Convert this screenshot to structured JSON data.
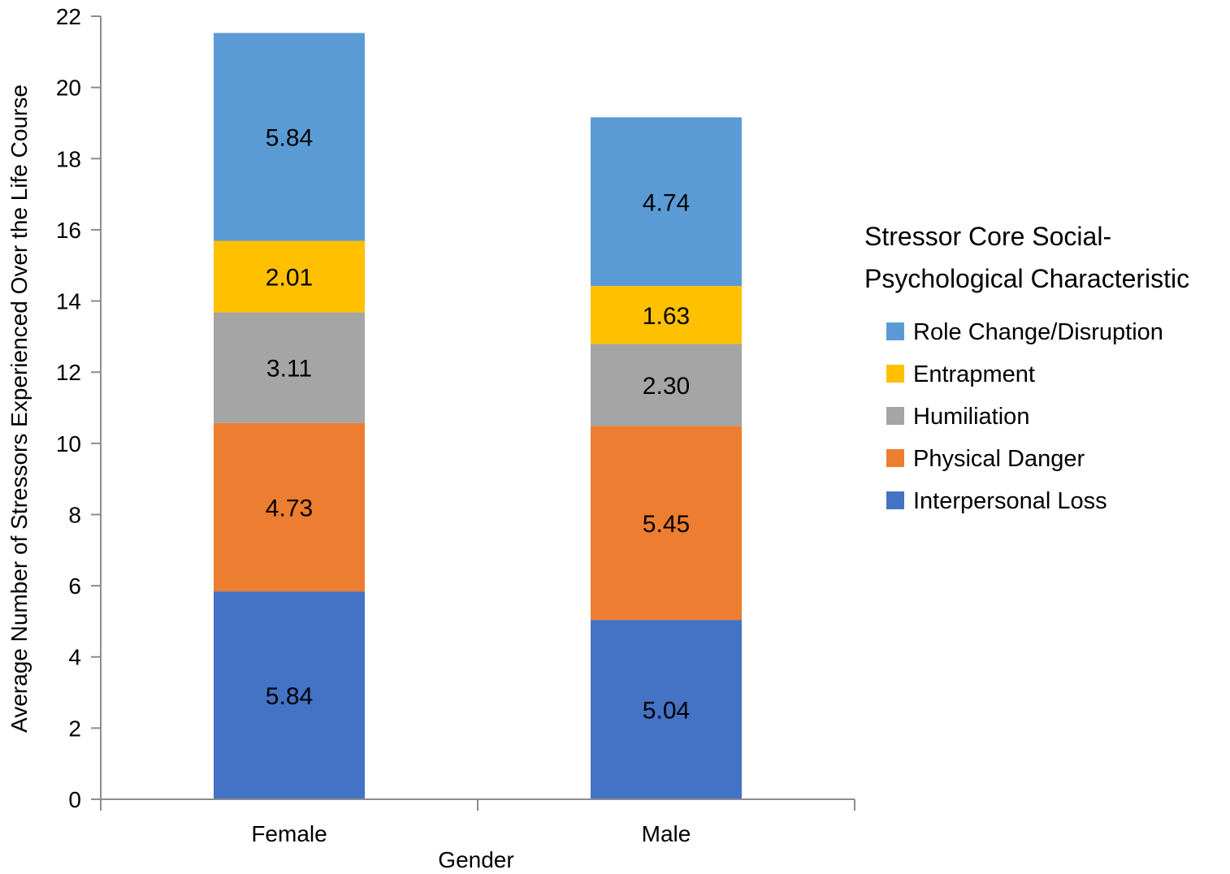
{
  "chart_data": {
    "type": "bar",
    "stacked": true,
    "categories": [
      "Female",
      "Male"
    ],
    "series": [
      {
        "name": "Interpersonal Loss",
        "values": [
          5.84,
          5.04
        ],
        "labels": [
          "5.84",
          "5.04"
        ],
        "color": "#4472C4"
      },
      {
        "name": "Physical Danger",
        "values": [
          4.73,
          5.45
        ],
        "labels": [
          "4.73",
          "5.45"
        ],
        "color": "#ED7D31"
      },
      {
        "name": "Humiliation",
        "values": [
          3.11,
          2.3
        ],
        "labels": [
          "3.11",
          "2.30"
        ],
        "color": "#A5A5A5"
      },
      {
        "name": "Entrapment",
        "values": [
          2.01,
          1.63
        ],
        "labels": [
          "2.01",
          "1.63"
        ],
        "color": "#FFC000"
      },
      {
        "name": "Role Change/Disruption",
        "values": [
          5.84,
          4.74
        ],
        "labels": [
          "5.84",
          "4.74"
        ],
        "color": "#5B9BD5"
      }
    ],
    "legend_order": [
      "Role Change/Disruption",
      "Entrapment",
      "Humiliation",
      "Physical Danger",
      "Interpersonal Loss"
    ],
    "xlabel": "Gender",
    "ylabel": "Average Number of Stressors Experienced Over the Life Course",
    "ylim": [
      0,
      22
    ],
    "yticks": [
      0,
      2,
      4,
      6,
      8,
      10,
      12,
      14,
      16,
      18,
      20,
      22
    ],
    "legend": {
      "title_line1": "Stressor Core Social-",
      "title_line2": "Psychological Characteristic",
      "placement": "right"
    },
    "grid": false
  }
}
